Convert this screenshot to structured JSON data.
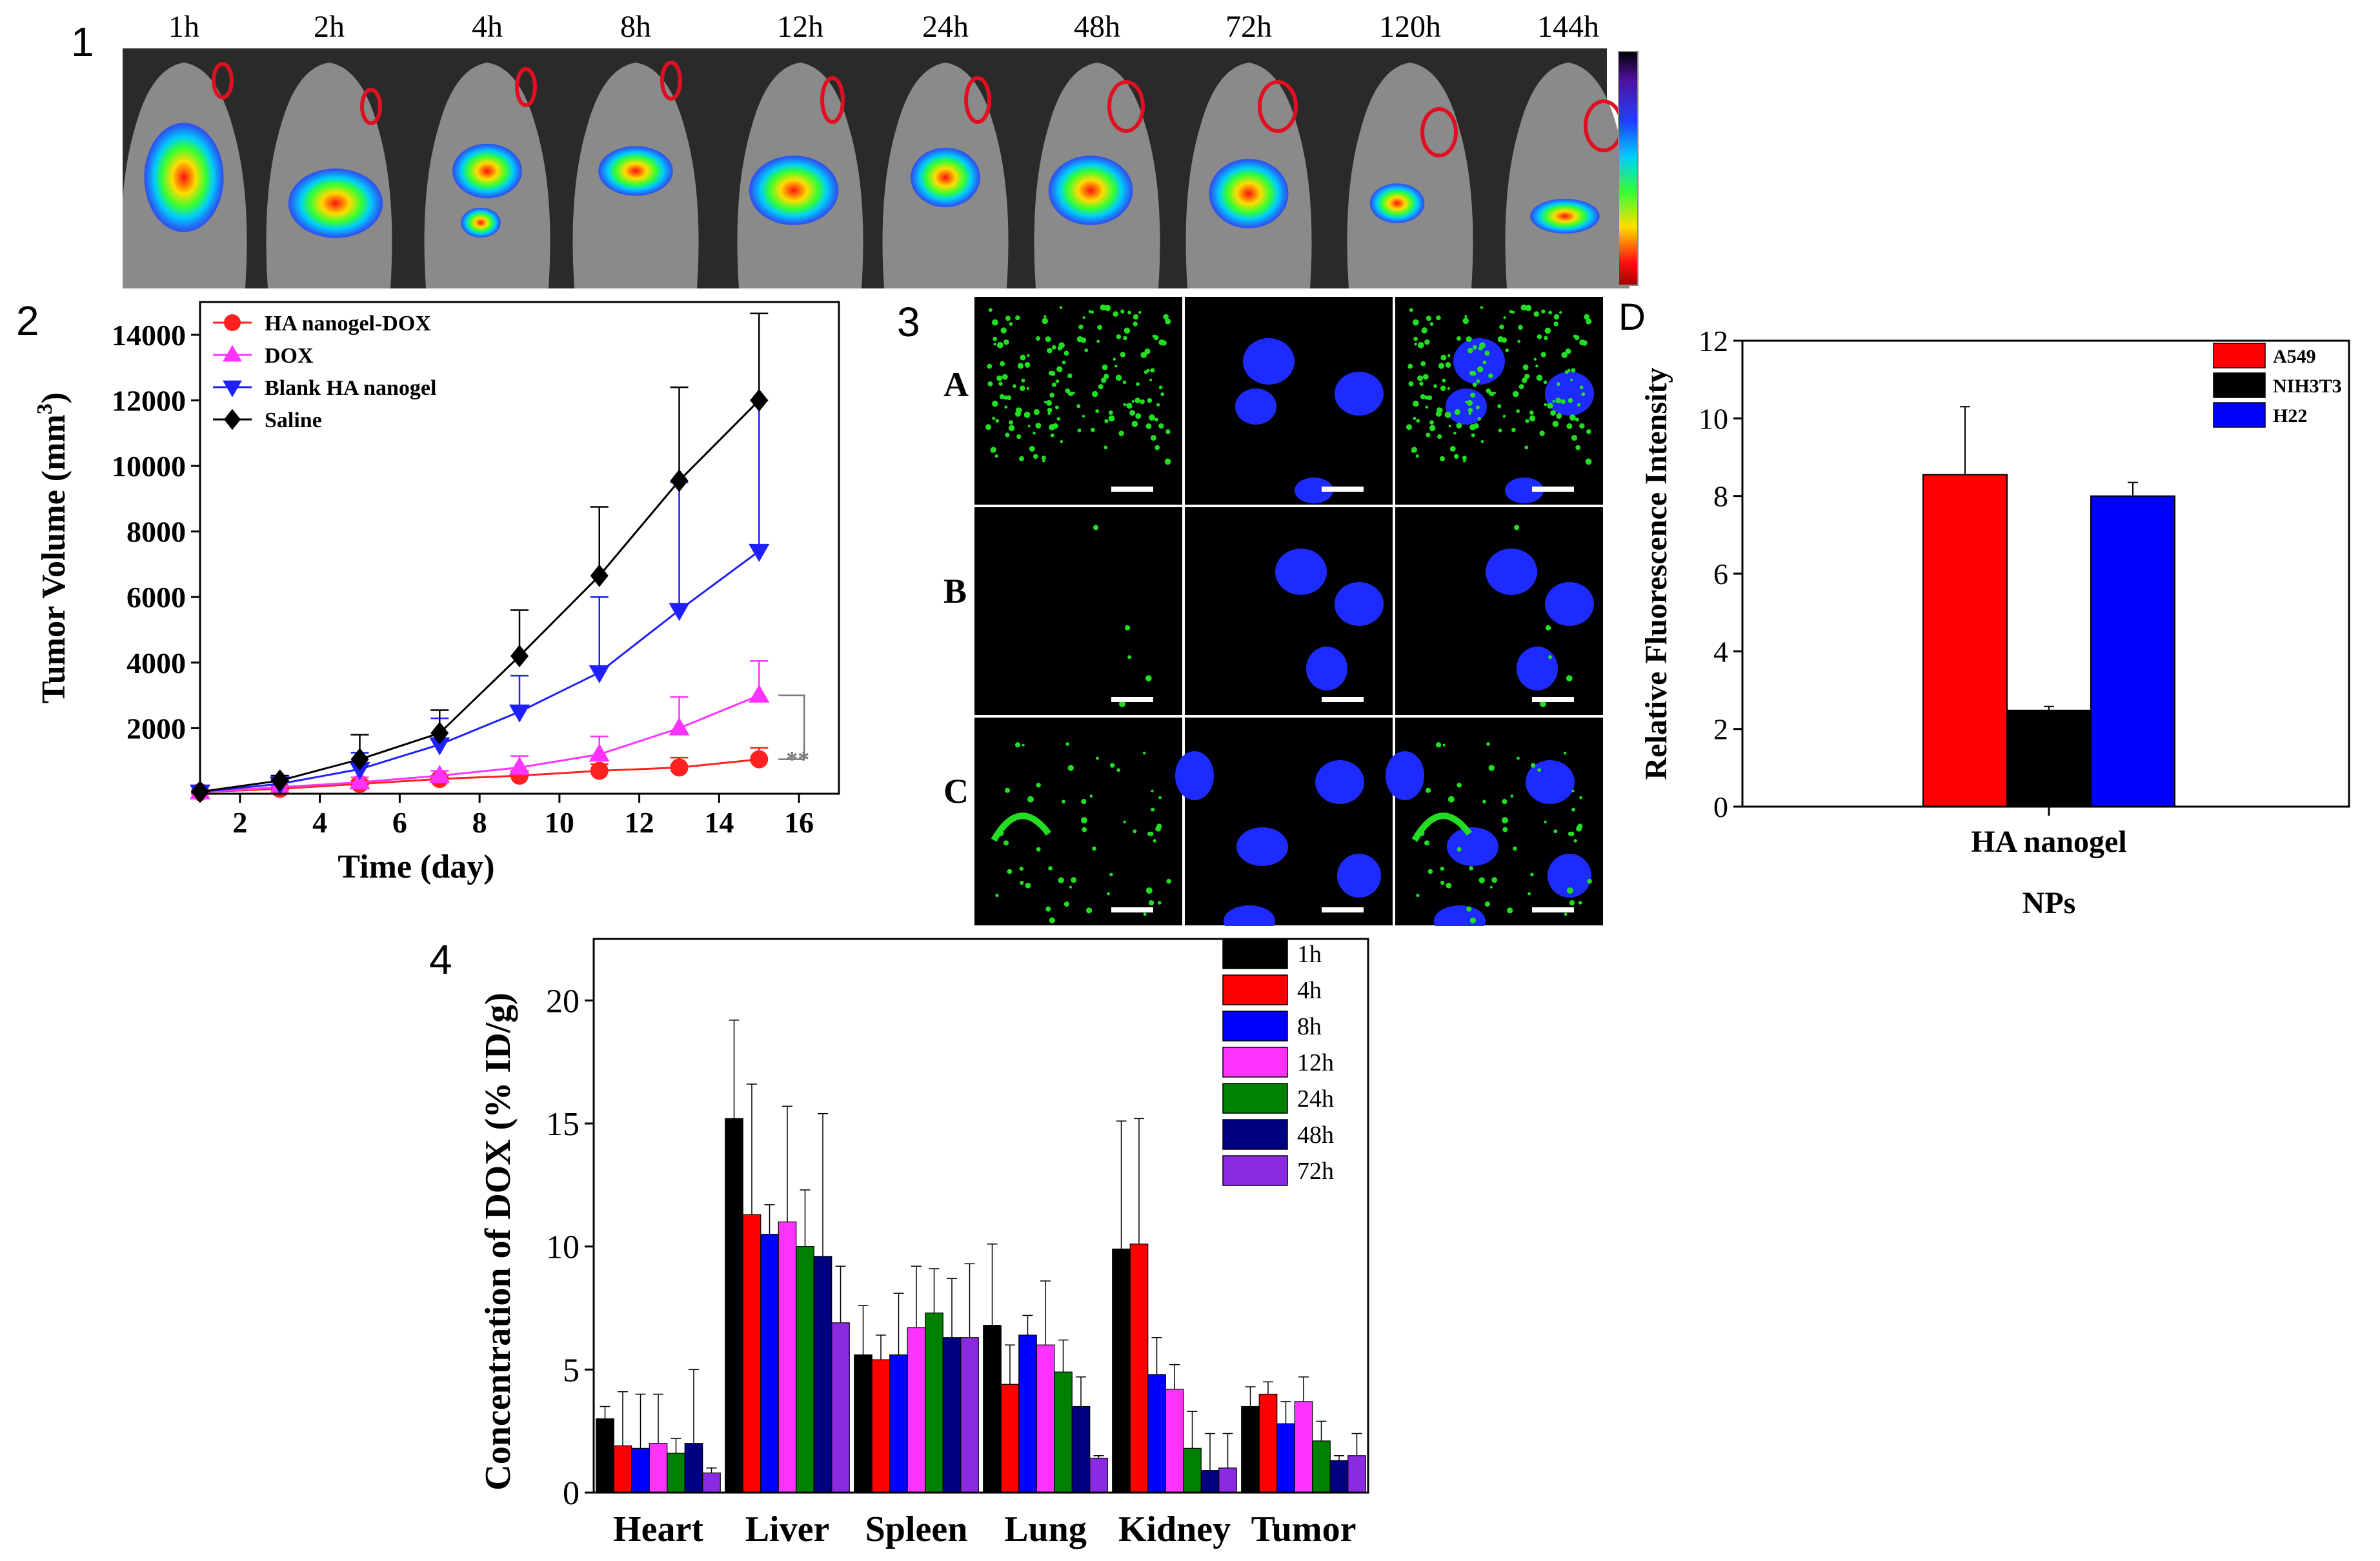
{
  "panel_numbers": [
    "1",
    "2",
    "3",
    "4"
  ],
  "panel1": {
    "time_labels": [
      "1h",
      "2h",
      "4h",
      "8h",
      "12h",
      "24h",
      "48h",
      "72h",
      "120h",
      "144h"
    ]
  },
  "panel3": {
    "row_labels": [
      "A",
      "B",
      "C"
    ],
    "panel_letter": "D"
  },
  "chart_data": [
    {
      "type": "line",
      "xlabel": "Time (day)",
      "ylabel": "Tumor Volume (mm",
      "ylabel_sup": "3",
      "ylabel_end": ")",
      "xlim": [
        1,
        17
      ],
      "ylim": [
        0,
        15000
      ],
      "xticks": [
        2,
        4,
        6,
        8,
        10,
        12,
        14,
        16
      ],
      "yticks": [
        2000,
        4000,
        6000,
        8000,
        10000,
        12000,
        14000
      ],
      "x": [
        1,
        3,
        5,
        7,
        9,
        11,
        13,
        15
      ],
      "significance": "**",
      "series": [
        {
          "name": "HA nanogel-DOX",
          "color": "#ff2020",
          "marker": "circle",
          "values": [
            50,
            150,
            300,
            450,
            550,
            700,
            800,
            1050
          ],
          "err": [
            0,
            50,
            100,
            100,
            150,
            200,
            300,
            350
          ]
        },
        {
          "name": "DOX",
          "color": "#ff33ff",
          "marker": "triangle-up",
          "values": [
            50,
            200,
            350,
            550,
            800,
            1200,
            2000,
            3000
          ],
          "err": [
            0,
            50,
            150,
            150,
            350,
            550,
            950,
            1050
          ]
        },
        {
          "name": "Blank HA nanogel",
          "color": "#2020ff",
          "marker": "triangle-down",
          "values": [
            60,
            300,
            750,
            1500,
            2500,
            3700,
            5600,
            7400
          ],
          "err": [
            0,
            100,
            500,
            800,
            1100,
            2300,
            3900,
            4600
          ]
        },
        {
          "name": "Saline",
          "color": "#000000",
          "marker": "diamond",
          "values": [
            60,
            400,
            1050,
            1850,
            4200,
            6650,
            9550,
            12000
          ],
          "err": [
            0,
            150,
            750,
            700,
            1400,
            2100,
            2850,
            2650
          ]
        }
      ]
    },
    {
      "type": "bar",
      "xlabel": "NPs",
      "ylabel": "Relative Fluorescence Intensity",
      "categories": [
        "HA nanogel"
      ],
      "ylim": [
        0,
        12
      ],
      "yticks": [
        0,
        2,
        4,
        6,
        8,
        10,
        12
      ],
      "series": [
        {
          "name": "A549",
          "color": "#ff0000",
          "values": [
            8.55
          ],
          "err": [
            1.75
          ]
        },
        {
          "name": "NIH3T3",
          "color": "#000000",
          "values": [
            2.48
          ],
          "err": [
            0.1
          ]
        },
        {
          "name": "H22",
          "color": "#0000ff",
          "values": [
            8.0
          ],
          "err": [
            0.35
          ]
        }
      ]
    },
    {
      "type": "bar",
      "ylabel": "Concentration of DOX (% ID/g)",
      "categories": [
        "Heart",
        "Liver",
        "Spleen",
        "Lung",
        "Kidney",
        "Tumor"
      ],
      "ylim": [
        0,
        22.5
      ],
      "yticks": [
        0,
        5,
        10,
        15,
        20
      ],
      "series": [
        {
          "name": "1h",
          "color": "#000000",
          "values": [
            3.0,
            15.2,
            5.6,
            6.8,
            9.9,
            3.5
          ],
          "err": [
            0.5,
            4.0,
            2.0,
            3.3,
            5.2,
            0.8
          ]
        },
        {
          "name": "4h",
          "color": "#ff0000",
          "values": [
            1.9,
            11.3,
            5.4,
            4.4,
            10.1,
            4.0
          ],
          "err": [
            2.2,
            5.3,
            1.0,
            1.6,
            5.1,
            0.5
          ]
        },
        {
          "name": "8h",
          "color": "#0000ff",
          "values": [
            1.8,
            10.5,
            5.6,
            6.4,
            4.8,
            2.8
          ],
          "err": [
            2.2,
            1.2,
            2.5,
            0.8,
            1.5,
            0.9
          ]
        },
        {
          "name": "12h",
          "color": "#ff33ff",
          "values": [
            2.0,
            11.0,
            6.7,
            6.0,
            4.2,
            3.7
          ],
          "err": [
            2.0,
            4.7,
            2.5,
            2.6,
            1.0,
            1.0
          ]
        },
        {
          "name": "24h",
          "color": "#008000",
          "values": [
            1.6,
            10.0,
            7.3,
            4.9,
            1.8,
            2.1
          ],
          "err": [
            0.6,
            2.3,
            1.8,
            1.3,
            1.5,
            0.8
          ]
        },
        {
          "name": "48h",
          "color": "#000080",
          "values": [
            2.0,
            9.6,
            6.3,
            3.5,
            0.9,
            1.3
          ],
          "err": [
            3.0,
            5.8,
            2.4,
            1.2,
            1.5,
            0.2
          ]
        },
        {
          "name": "72h",
          "color": "#8a2be2",
          "values": [
            0.8,
            6.9,
            6.3,
            1.4,
            1.0,
            1.5
          ],
          "err": [
            0.2,
            2.3,
            3.0,
            0.1,
            1.4,
            0.9
          ]
        }
      ]
    }
  ],
  "colors": {
    "photo_bg": "#2a2a2a",
    "mouse_body": "#8a8a8a",
    "micro_bg": "#000000",
    "nucleus_blue": "#1e2bff",
    "particle_green": "#22dd22",
    "roi_circle": "#e01020"
  }
}
